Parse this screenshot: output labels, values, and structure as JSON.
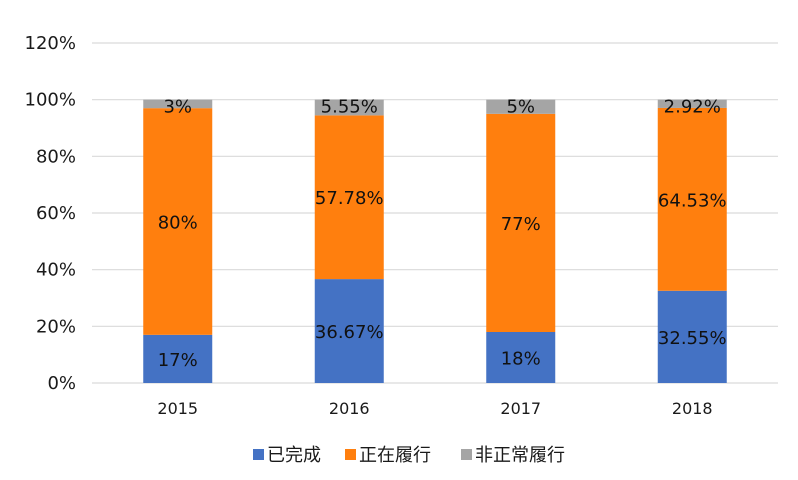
{
  "chart_data": {
    "type": "bar",
    "stacked": true,
    "categories": [
      "2015",
      "2016",
      "2017",
      "2018"
    ],
    "series": [
      {
        "name": "已完成",
        "values": [
          17,
          36.67,
          18,
          32.55
        ],
        "labels": [
          "17%",
          "36.67%",
          "18%",
          "32.55%"
        ],
        "color": "#4472C4"
      },
      {
        "name": "正在履行",
        "values": [
          80,
          57.78,
          77,
          64.53
        ],
        "labels": [
          "80%",
          "57.78%",
          "77%",
          "64.53%"
        ],
        "color": "#FF7F0E"
      },
      {
        "name": "非正常履行",
        "values": [
          3,
          5.55,
          5,
          2.92
        ],
        "labels": [
          "3%",
          "5.55%",
          "5%",
          "2.92%"
        ],
        "color": "#A5A5A5"
      }
    ],
    "ylim": [
      0,
      120
    ],
    "yticks": [
      "0%",
      "20%",
      "40%",
      "60%",
      "80%",
      "100%",
      "120%"
    ],
    "grid": true,
    "legend": "bottom"
  }
}
